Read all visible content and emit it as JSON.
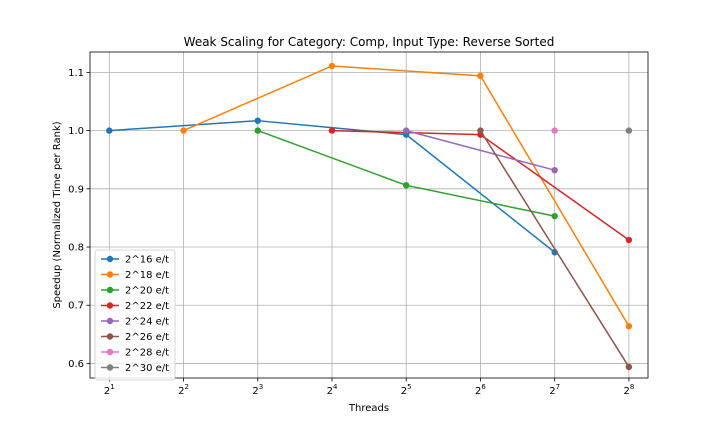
{
  "chart_data": {
    "type": "line",
    "title": "Weak Scaling for Category: Comp, Input Type: Reverse Sorted",
    "xlabel": "Threads",
    "ylabel": "Speedup (Normalized Time per Rank)",
    "x_scale": "log2",
    "x_ticks": [
      {
        "value": 2,
        "base": "2",
        "exp": "1"
      },
      {
        "value": 4,
        "base": "2",
        "exp": "2"
      },
      {
        "value": 8,
        "base": "2",
        "exp": "3"
      },
      {
        "value": 16,
        "base": "2",
        "exp": "4"
      },
      {
        "value": 32,
        "base": "2",
        "exp": "5"
      },
      {
        "value": 64,
        "base": "2",
        "exp": "6"
      },
      {
        "value": 128,
        "base": "2",
        "exp": "7"
      },
      {
        "value": 256,
        "base": "2",
        "exp": "8"
      }
    ],
    "y_ticks": [
      0.6,
      0.7,
      0.8,
      0.9,
      1.0,
      1.1
    ],
    "xlim": [
      1.67,
      306
    ],
    "ylim": [
      0.575,
      1.135
    ],
    "grid": true,
    "legend_position": "lower-left",
    "series": [
      {
        "name": "2^16 e/t",
        "color": "#1f77b4",
        "x": [
          2,
          8,
          32,
          128
        ],
        "y": [
          1.0,
          1.017,
          0.993,
          0.791
        ]
      },
      {
        "name": "2^18 e/t",
        "color": "#ff7f0e",
        "x": [
          4,
          16,
          64,
          256
        ],
        "y": [
          1.0,
          1.111,
          1.094,
          0.664
        ]
      },
      {
        "name": "2^20 e/t",
        "color": "#2ca02c",
        "x": [
          8,
          32,
          128
        ],
        "y": [
          1.0,
          0.906,
          0.853
        ]
      },
      {
        "name": "2^22 e/t",
        "color": "#d62728",
        "x": [
          16,
          64,
          256
        ],
        "y": [
          1.0,
          0.993,
          0.812
        ]
      },
      {
        "name": "2^24 e/t",
        "color": "#9467bd",
        "x": [
          32,
          128
        ],
        "y": [
          1.0,
          0.932
        ]
      },
      {
        "name": "2^26 e/t",
        "color": "#8c564b",
        "x": [
          64,
          256
        ],
        "y": [
          1.0,
          0.594
        ]
      },
      {
        "name": "2^28 e/t",
        "color": "#e377c2",
        "x": [
          128
        ],
        "y": [
          1.0
        ]
      },
      {
        "name": "2^30 e/t",
        "color": "#7f7f7f",
        "x": [
          256
        ],
        "y": [
          1.0
        ]
      }
    ]
  }
}
